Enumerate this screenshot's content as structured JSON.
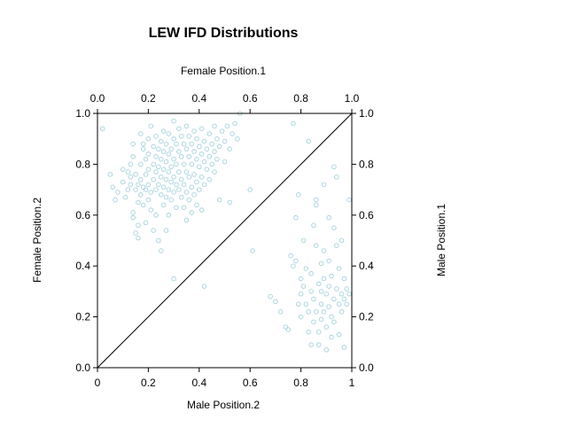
{
  "chart_data": {
    "type": "scatter",
    "title": "LEW IFD Distributions",
    "xlabel_bottom": "Male Position.2",
    "xlabel_top": "Female Position.1",
    "ylabel_left": "Female Position.2",
    "ylabel_right": "Male Position.1",
    "xlim": [
      0,
      1
    ],
    "ylim": [
      0,
      1
    ],
    "bottom_ticks": [
      "0",
      "0.2",
      "0.4",
      "0.6",
      "0.8",
      "1"
    ],
    "top_ticks": [
      "0.0",
      "0.2",
      "0.4",
      "0.6",
      "0.8",
      "1.0"
    ],
    "left_ticks": [
      "0.0",
      "0.2",
      "0.4",
      "0.6",
      "0.8",
      "1.0"
    ],
    "right_ticks": [
      "0.0",
      "0.2",
      "0.4",
      "0.6",
      "0.8",
      "1.0"
    ],
    "tick_values": [
      0,
      0.2,
      0.4,
      0.6,
      0.8,
      1
    ],
    "diagonal": true,
    "grid": false,
    "point_color": "#a3d3dd",
    "series": [
      {
        "points": [
          [
            0.02,
            0.94
          ],
          [
            0.05,
            0.76
          ],
          [
            0.06,
            0.71
          ],
          [
            0.07,
            0.66
          ],
          [
            0.08,
            0.69
          ],
          [
            0.1,
            0.78
          ],
          [
            0.1,
            0.73
          ],
          [
            0.11,
            0.67
          ],
          [
            0.12,
            0.7
          ],
          [
            0.12,
            0.77
          ],
          [
            0.13,
            0.75
          ],
          [
            0.13,
            0.72
          ],
          [
            0.13,
            0.8
          ],
          [
            0.14,
            0.88
          ],
          [
            0.14,
            0.83
          ],
          [
            0.14,
            0.61
          ],
          [
            0.14,
            0.59
          ],
          [
            0.15,
            0.7
          ],
          [
            0.15,
            0.76
          ],
          [
            0.15,
            0.53
          ],
          [
            0.16,
            0.56
          ],
          [
            0.16,
            0.51
          ],
          [
            0.16,
            0.72
          ],
          [
            0.16,
            0.65
          ],
          [
            0.17,
            0.92
          ],
          [
            0.17,
            0.74
          ],
          [
            0.17,
            0.68
          ],
          [
            0.17,
            0.8
          ],
          [
            0.18,
            0.86
          ],
          [
            0.18,
            0.88
          ],
          [
            0.18,
            0.71
          ],
          [
            0.18,
            0.64
          ],
          [
            0.19,
            0.82
          ],
          [
            0.19,
            0.76
          ],
          [
            0.19,
            0.7
          ],
          [
            0.19,
            0.57
          ],
          [
            0.2,
            0.9
          ],
          [
            0.2,
            0.84
          ],
          [
            0.2,
            0.78
          ],
          [
            0.2,
            0.72
          ],
          [
            0.2,
            0.66
          ],
          [
            0.21,
            0.95
          ],
          [
            0.21,
            0.69
          ],
          [
            0.21,
            0.62
          ],
          [
            0.22,
            0.87
          ],
          [
            0.22,
            0.8
          ],
          [
            0.22,
            0.74
          ],
          [
            0.22,
            0.54
          ],
          [
            0.23,
            0.91
          ],
          [
            0.23,
            0.83
          ],
          [
            0.23,
            0.77
          ],
          [
            0.23,
            0.7
          ],
          [
            0.23,
            0.6
          ],
          [
            0.24,
            0.86
          ],
          [
            0.24,
            0.79
          ],
          [
            0.24,
            0.72
          ],
          [
            0.24,
            0.5
          ],
          [
            0.25,
            0.89
          ],
          [
            0.25,
            0.82
          ],
          [
            0.25,
            0.75
          ],
          [
            0.25,
            0.68
          ],
          [
            0.25,
            0.46
          ],
          [
            0.26,
            0.93
          ],
          [
            0.26,
            0.85
          ],
          [
            0.26,
            0.78
          ],
          [
            0.26,
            0.71
          ],
          [
            0.26,
            0.64
          ],
          [
            0.27,
            0.88
          ],
          [
            0.27,
            0.81
          ],
          [
            0.27,
            0.74
          ],
          [
            0.27,
            0.67
          ],
          [
            0.27,
            0.54
          ],
          [
            0.28,
            0.92
          ],
          [
            0.28,
            0.84
          ],
          [
            0.28,
            0.77
          ],
          [
            0.28,
            0.7
          ],
          [
            0.28,
            0.6
          ],
          [
            0.29,
            0.86
          ],
          [
            0.29,
            0.79
          ],
          [
            0.29,
            0.73
          ],
          [
            0.29,
            0.66
          ],
          [
            0.3,
            0.97
          ],
          [
            0.3,
            0.9
          ],
          [
            0.3,
            0.82
          ],
          [
            0.3,
            0.75
          ],
          [
            0.3,
            0.69
          ],
          [
            0.3,
            0.35
          ],
          [
            0.31,
            0.88
          ],
          [
            0.31,
            0.8
          ],
          [
            0.31,
            0.72
          ],
          [
            0.31,
            0.63
          ],
          [
            0.32,
            0.94
          ],
          [
            0.32,
            0.85
          ],
          [
            0.32,
            0.77
          ],
          [
            0.32,
            0.7
          ],
          [
            0.33,
            0.91
          ],
          [
            0.33,
            0.83
          ],
          [
            0.33,
            0.74
          ],
          [
            0.33,
            0.67
          ],
          [
            0.34,
            0.88
          ],
          [
            0.34,
            0.8
          ],
          [
            0.34,
            0.72
          ],
          [
            0.34,
            0.63
          ],
          [
            0.35,
            0.95
          ],
          [
            0.35,
            0.86
          ],
          [
            0.35,
            0.77
          ],
          [
            0.35,
            0.69
          ],
          [
            0.35,
            0.58
          ],
          [
            0.36,
            0.91
          ],
          [
            0.36,
            0.83
          ],
          [
            0.36,
            0.75
          ],
          [
            0.36,
            0.66
          ],
          [
            0.37,
            0.88
          ],
          [
            0.37,
            0.8
          ],
          [
            0.37,
            0.71
          ],
          [
            0.37,
            0.61
          ],
          [
            0.38,
            0.93
          ],
          [
            0.38,
            0.85
          ],
          [
            0.38,
            0.76
          ],
          [
            0.38,
            0.68
          ],
          [
            0.39,
            0.9
          ],
          [
            0.39,
            0.82
          ],
          [
            0.39,
            0.73
          ],
          [
            0.39,
            0.64
          ],
          [
            0.4,
            0.87
          ],
          [
            0.4,
            0.79
          ],
          [
            0.4,
            0.7
          ],
          [
            0.41,
            0.94
          ],
          [
            0.41,
            0.84
          ],
          [
            0.41,
            0.75
          ],
          [
            0.41,
            0.62
          ],
          [
            0.42,
            0.89
          ],
          [
            0.42,
            0.81
          ],
          [
            0.42,
            0.72
          ],
          [
            0.42,
            0.32
          ],
          [
            0.43,
            0.86
          ],
          [
            0.43,
            0.78
          ],
          [
            0.44,
            0.92
          ],
          [
            0.44,
            0.83
          ],
          [
            0.44,
            0.74
          ],
          [
            0.45,
            0.88
          ],
          [
            0.45,
            0.8
          ],
          [
            0.46,
            0.95
          ],
          [
            0.46,
            0.85
          ],
          [
            0.46,
            0.77
          ],
          [
            0.47,
            0.9
          ],
          [
            0.47,
            0.82
          ],
          [
            0.48,
            0.87
          ],
          [
            0.48,
            0.66
          ],
          [
            0.49,
            0.93
          ],
          [
            0.5,
            0.89
          ],
          [
            0.5,
            0.81
          ],
          [
            0.51,
            0.95
          ],
          [
            0.52,
            0.86
          ],
          [
            0.52,
            0.65
          ],
          [
            0.53,
            0.92
          ],
          [
            0.54,
            0.96
          ],
          [
            0.55,
            0.9
          ],
          [
            0.56,
            1.0
          ],
          [
            0.6,
            0.7
          ],
          [
            0.61,
            0.46
          ],
          [
            0.68,
            0.28
          ],
          [
            0.7,
            0.26
          ],
          [
            0.72,
            0.22
          ],
          [
            0.74,
            0.16
          ],
          [
            0.75,
            0.15
          ],
          [
            0.76,
            0.44
          ],
          [
            0.77,
            0.96
          ],
          [
            0.77,
            0.4
          ],
          [
            0.78,
            0.59
          ],
          [
            0.78,
            0.42
          ],
          [
            0.79,
            0.68
          ],
          [
            0.79,
            0.25
          ],
          [
            0.8,
            0.35
          ],
          [
            0.8,
            0.29
          ],
          [
            0.8,
            0.2
          ],
          [
            0.81,
            0.32
          ],
          [
            0.81,
            0.5
          ],
          [
            0.82,
            0.39
          ],
          [
            0.82,
            0.25
          ],
          [
            0.83,
            0.22
          ],
          [
            0.83,
            0.14
          ],
          [
            0.83,
            0.89
          ],
          [
            0.84,
            0.37
          ],
          [
            0.84,
            0.3
          ],
          [
            0.84,
            0.09
          ],
          [
            0.85,
            0.27
          ],
          [
            0.85,
            0.18
          ],
          [
            0.85,
            0.56
          ],
          [
            0.86,
            0.66
          ],
          [
            0.86,
            0.64
          ],
          [
            0.86,
            0.48
          ],
          [
            0.86,
            0.22
          ],
          [
            0.87,
            0.33
          ],
          [
            0.87,
            0.14
          ],
          [
            0.87,
            0.09
          ],
          [
            0.88,
            0.41
          ],
          [
            0.88,
            0.3
          ],
          [
            0.88,
            0.25
          ],
          [
            0.88,
            0.19
          ],
          [
            0.89,
            0.72
          ],
          [
            0.89,
            0.46
          ],
          [
            0.89,
            0.35
          ],
          [
            0.89,
            0.22
          ],
          [
            0.9,
            0.29
          ],
          [
            0.9,
            0.16
          ],
          [
            0.9,
            0.07
          ],
          [
            0.91,
            0.59
          ],
          [
            0.91,
            0.42
          ],
          [
            0.91,
            0.32
          ],
          [
            0.91,
            0.24
          ],
          [
            0.92,
            0.2
          ],
          [
            0.92,
            0.12
          ],
          [
            0.92,
            0.36
          ],
          [
            0.93,
            0.79
          ],
          [
            0.93,
            0.55
          ],
          [
            0.93,
            0.27
          ],
          [
            0.93,
            0.18
          ],
          [
            0.94,
            0.75
          ],
          [
            0.94,
            0.48
          ],
          [
            0.94,
            0.31
          ],
          [
            0.95,
            0.25
          ],
          [
            0.95,
            0.39
          ],
          [
            0.95,
            0.13
          ],
          [
            0.96,
            0.29
          ],
          [
            0.96,
            0.22
          ],
          [
            0.96,
            0.5
          ],
          [
            0.97,
            0.35
          ],
          [
            0.97,
            0.27
          ],
          [
            0.97,
            0.08
          ],
          [
            0.98,
            0.31
          ],
          [
            0.98,
            0.25
          ],
          [
            0.99,
            0.66
          ],
          [
            0.99,
            0.29
          ]
        ]
      }
    ]
  }
}
